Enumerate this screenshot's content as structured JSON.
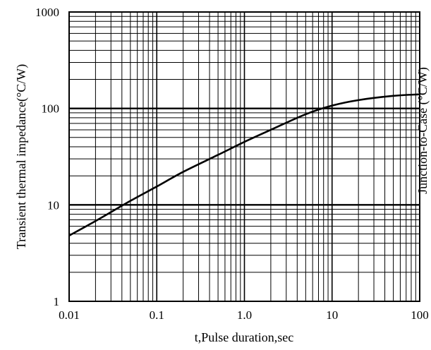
{
  "chart_data": {
    "type": "line",
    "title": "",
    "xlabel": "t,Pulse duration,sec",
    "ylabel": "Transient thermal impedance(°C/W)",
    "right_clipped_label": "Junction-to-Case (°C/W)",
    "x_scale": "log",
    "y_scale": "log",
    "xlim": [
      0.01,
      100
    ],
    "ylim": [
      1,
      1000
    ],
    "x_tick_labels": [
      "0.01",
      "0.1",
      "1.0",
      "10",
      "100"
    ],
    "y_tick_labels": [
      "1000",
      "100",
      "10",
      "1"
    ],
    "grid": true,
    "legend": "none",
    "series": [
      {
        "x": [
          0.01,
          0.02,
          0.05,
          0.1,
          0.2,
          0.5,
          1,
          2,
          5,
          10,
          20,
          50,
          100
        ],
        "y": [
          4.8,
          6.8,
          11,
          15.5,
          22,
          33,
          45,
          60,
          87,
          107,
          122,
          135,
          140
        ]
      }
    ],
    "colors": {
      "line": "#000000",
      "grid": "#000000",
      "background": "#ffffff"
    }
  }
}
